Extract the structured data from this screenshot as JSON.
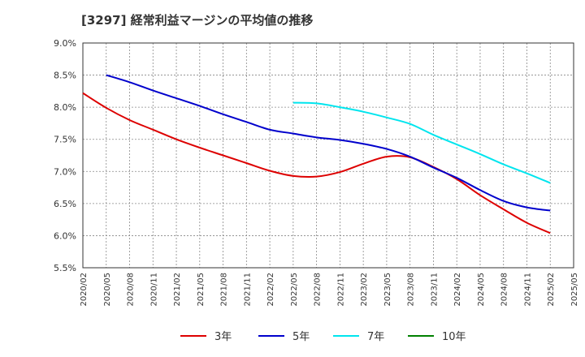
{
  "title": "[3297]  経常利益マージンの平均値の推移",
  "chart_data": {
    "type": "line",
    "title": "[3297]  経常利益マージンの平均値の推移",
    "x": [
      "2020/02",
      "2020/05",
      "2020/08",
      "2020/11",
      "2021/02",
      "2021/05",
      "2021/08",
      "2021/11",
      "2022/02",
      "2022/05",
      "2022/08",
      "2022/11",
      "2023/02",
      "2023/05",
      "2023/08",
      "2023/11",
      "2024/02",
      "2024/05",
      "2024/08",
      "2024/11",
      "2025/02",
      "2025/05"
    ],
    "ylim": [
      5.5,
      9.0
    ],
    "yticks": [
      "5.5%",
      "6.0%",
      "6.5%",
      "7.0%",
      "7.5%",
      "8.0%",
      "8.5%",
      "9.0%"
    ],
    "ytick_values": [
      5.5,
      6.0,
      6.5,
      7.0,
      7.5,
      8.0,
      8.5,
      9.0
    ],
    "grid": true,
    "legend_position": "bottom",
    "series": [
      {
        "name": "3年",
        "color": "#dd0000",
        "values": [
          8.22,
          7.99,
          7.8,
          7.65,
          7.5,
          7.37,
          7.25,
          7.13,
          7.01,
          6.93,
          6.92,
          6.99,
          7.12,
          7.23,
          7.22,
          7.07,
          6.88,
          6.63,
          6.41,
          6.2,
          6.04,
          null
        ]
      },
      {
        "name": "5年",
        "color": "#0000cc",
        "values": [
          null,
          8.5,
          8.39,
          8.26,
          8.14,
          8.02,
          7.89,
          7.77,
          7.65,
          7.59,
          7.53,
          7.49,
          7.43,
          7.35,
          7.23,
          7.06,
          6.9,
          6.71,
          6.54,
          6.44,
          6.39,
          null
        ]
      },
      {
        "name": "7年",
        "color": "#00e5ee",
        "values": [
          null,
          null,
          null,
          null,
          null,
          null,
          null,
          null,
          null,
          8.07,
          8.06,
          8.0,
          7.93,
          7.84,
          7.74,
          7.57,
          7.42,
          7.27,
          7.11,
          6.97,
          6.82,
          null
        ]
      },
      {
        "name": "10年",
        "color": "#008000",
        "values": [
          null,
          null,
          null,
          null,
          null,
          null,
          null,
          null,
          null,
          null,
          null,
          null,
          null,
          null,
          null,
          null,
          null,
          null,
          null,
          null,
          null,
          null
        ]
      }
    ]
  }
}
